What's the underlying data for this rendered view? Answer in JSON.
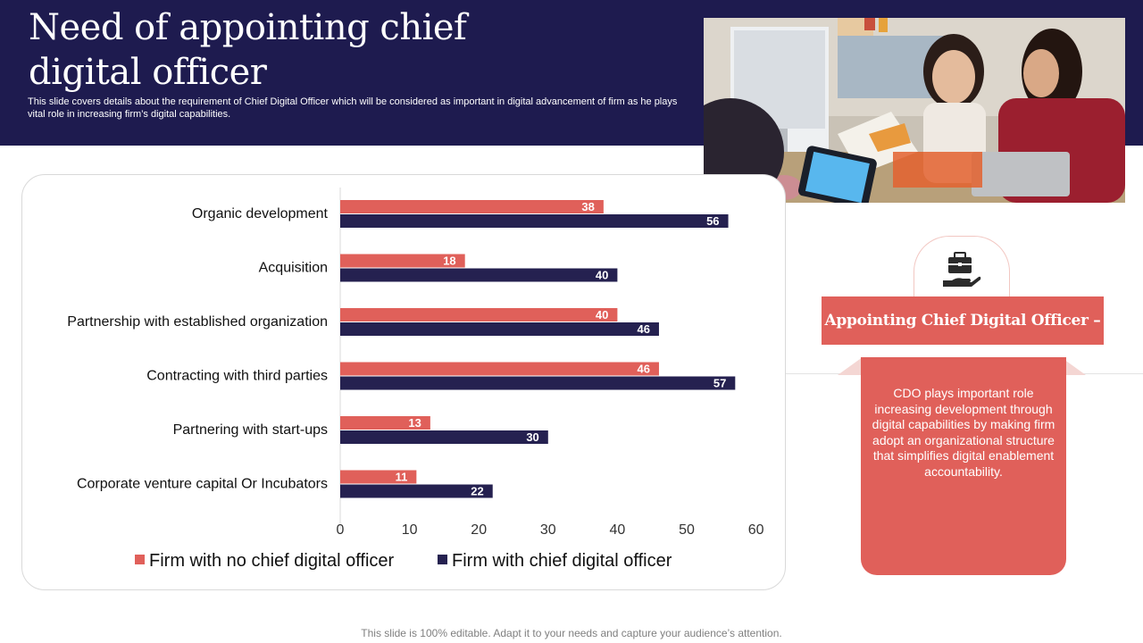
{
  "header": {
    "title": "Need of appointing chief digital officer",
    "subtitle": "This slide covers details about the requirement of Chief Digital Officer which will be considered as important in digital advancement of firm as he plays vital role in increasing firm’s digital capabilities."
  },
  "chart_data": {
    "type": "bar",
    "orientation": "horizontal",
    "categories": [
      "Organic development",
      "Acquisition",
      "Partnership with established organization",
      "Contracting with third parties",
      "Partnering with start-ups",
      "Corporate venture capital Or Incubators"
    ],
    "series": [
      {
        "name": "Firm with no chief digital officer",
        "color": "#e0605a",
        "values": [
          38,
          18,
          40,
          46,
          13,
          11
        ]
      },
      {
        "name": "Firm with chief digital officer",
        "color": "#252150",
        "values": [
          56,
          40,
          46,
          57,
          30,
          22
        ]
      }
    ],
    "xlim": [
      0,
      60
    ],
    "xticks": [
      0,
      10,
      20,
      30,
      40,
      50,
      60
    ],
    "grid": false,
    "legend": "bottom",
    "data_labels": true
  },
  "panel": {
    "icon": "briefcase-hand-icon",
    "heading": "Appointing Chief Digital Officer –",
    "description": "CDO plays important role increasing development through digital capabilities by making firm adopt an organizational structure that simplifies digital enablement accountability.",
    "accent_color": "#e0605a"
  },
  "photo": {
    "description": "people-meeting-photo"
  },
  "colors": {
    "header_bg": "#1e1b4f",
    "accent": "#e0605a",
    "navy": "#252150"
  },
  "footer": {
    "text": "This slide is 100% editable. Adapt it to your needs and capture your audience’s attention."
  }
}
